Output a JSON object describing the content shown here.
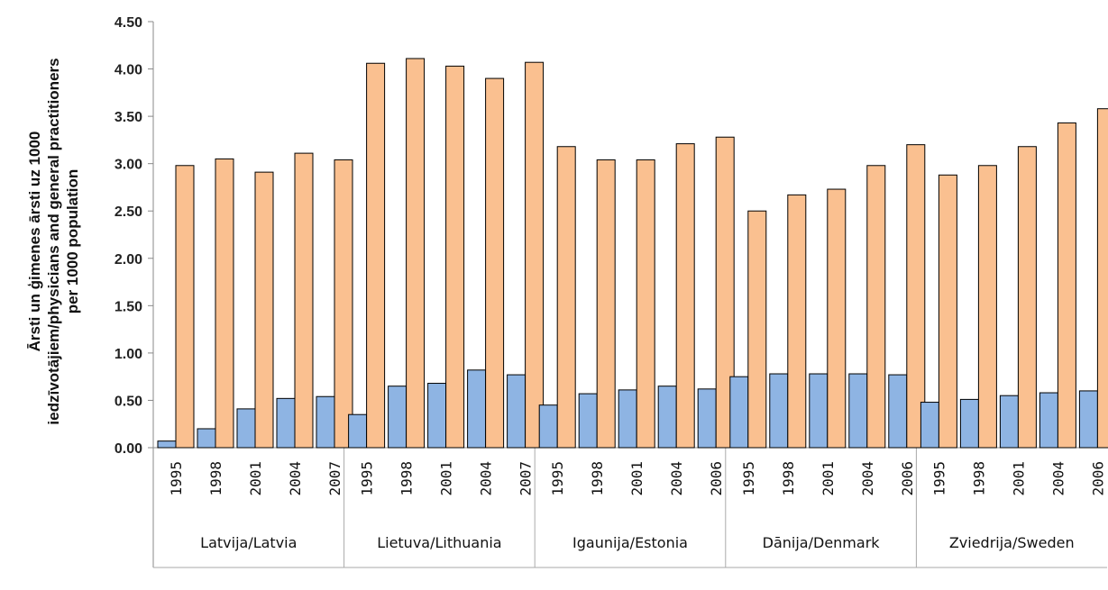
{
  "chart_data": {
    "type": "bar",
    "ylabel_lines": [
      "Ārsti un ģimenes ārsti uz 1000",
      "iedzīvotājiem/physicians and general practitioners",
      "per 1000 population"
    ],
    "ylim": [
      0,
      4.5
    ],
    "yticks": [
      "0.00",
      "0.50",
      "1.00",
      "1.50",
      "2.00",
      "2.50",
      "3.00",
      "3.50",
      "4.00",
      "4.50"
    ],
    "series_colors": [
      "#8EB4E3",
      "#FAC090"
    ],
    "groups": [
      {
        "label": "Latvija/Latvia",
        "years": [
          "1995",
          "1998",
          "2001",
          "2004",
          "2007"
        ],
        "values_blue": [
          0.07,
          0.2,
          0.41,
          0.52,
          0.54
        ],
        "values_orange": [
          2.98,
          3.05,
          2.91,
          3.11,
          3.04
        ]
      },
      {
        "label": "Lietuva/Lithuania",
        "years": [
          "1995",
          "1998",
          "2001",
          "2004",
          "2007"
        ],
        "values_blue": [
          0.35,
          0.65,
          0.68,
          0.82,
          0.77
        ],
        "values_orange": [
          4.06,
          4.11,
          4.03,
          3.9,
          4.07
        ]
      },
      {
        "label": "Igaunija/Estonia",
        "years": [
          "1995",
          "1998",
          "2001",
          "2004",
          "2006"
        ],
        "values_blue": [
          0.45,
          0.57,
          0.61,
          0.65,
          0.62
        ],
        "values_orange": [
          3.18,
          3.04,
          3.04,
          3.21,
          3.28
        ]
      },
      {
        "label": "Dānija/Denmark",
        "years": [
          "1995",
          "1998",
          "2001",
          "2004",
          "2006"
        ],
        "values_blue": [
          0.75,
          0.78,
          0.78,
          0.78,
          0.77
        ],
        "values_orange": [
          2.5,
          2.67,
          2.73,
          2.98,
          3.2
        ]
      },
      {
        "label": "Zviedrija/Sweden",
        "years": [
          "1995",
          "1998",
          "2001",
          "2004",
          "2006"
        ],
        "values_blue": [
          0.48,
          0.51,
          0.55,
          0.58,
          0.6
        ],
        "values_orange": [
          2.88,
          2.98,
          3.18,
          3.43,
          3.58
        ]
      }
    ]
  }
}
